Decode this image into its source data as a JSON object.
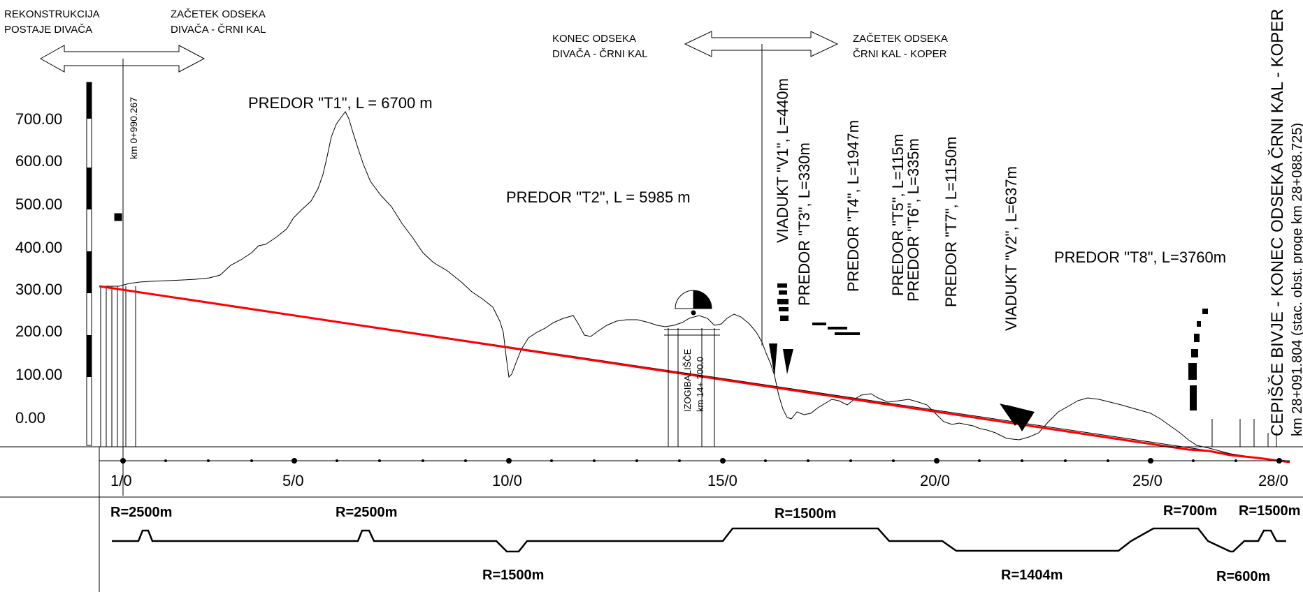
{
  "header": {
    "left_top": {
      "line1": "REKONSTRUKCIJA",
      "line2": "POSTAJE DIVAČA"
    },
    "left_start": {
      "line1": "ZAČETEK ODSEKA",
      "line2": "DIVAČA - ČRNI KAL"
    },
    "mid_end": {
      "line1": "KONEC ODSEKA",
      "line2": "DIVAČA - ČRNI KAL"
    },
    "mid_start": {
      "line1": "ZAČETEK ODSEKA",
      "line2": "ČRNI KAL - KOPER"
    },
    "station_km": "km 0+990.267"
  },
  "elevations": [
    "700.00",
    "600.00",
    "500.00",
    "400.00",
    "300.00",
    "200.00",
    "100.00",
    "0.00"
  ],
  "structures": {
    "t1": "PREDOR \"T1\", L = 6700 m",
    "t2": "PREDOR \"T2\", L = 5985 m",
    "v1": "VIADUKT \"V1\", L=440m",
    "t3": "PREDOR \"T3\", L=330m",
    "t4": "PREDOR \"T4\", L=1947m",
    "t5": "PREDOR \"T5\", L=115m",
    "t6": "PREDOR \"T6\", L=335m",
    "t7": "PREDOR \"T7\", L=1150m",
    "v2": "VIADUKT \"V2\", L=637m",
    "t8": "PREDOR \"T8\", L=3760m"
  },
  "izogibalisce": {
    "line1": "IZOGIBALIŠČE",
    "line2": "km 14+ 300.0"
  },
  "end_labels": {
    "line1": "CEPIŠČE BIVJE - KONEC ODSEKA ČRNI KAL - KOPER",
    "line2": "km 28+091.804 (stac. obst. proge km 28+088.725)"
  },
  "km_ticks": [
    "1/0",
    "5/0",
    "10/0",
    "15/0",
    "20/0",
    "25/0",
    "28/0"
  ],
  "curves": {
    "r1": "R=2500m",
    "r2": "R=2500m",
    "r3": "R=1500m",
    "r4": "R=1500m",
    "r5": "R=1404m",
    "r6": "R=700m",
    "r7": "R=1500m",
    "r8": "R=600m"
  },
  "colors": {
    "alignment": "#ff0000",
    "ink": "#000000"
  }
}
